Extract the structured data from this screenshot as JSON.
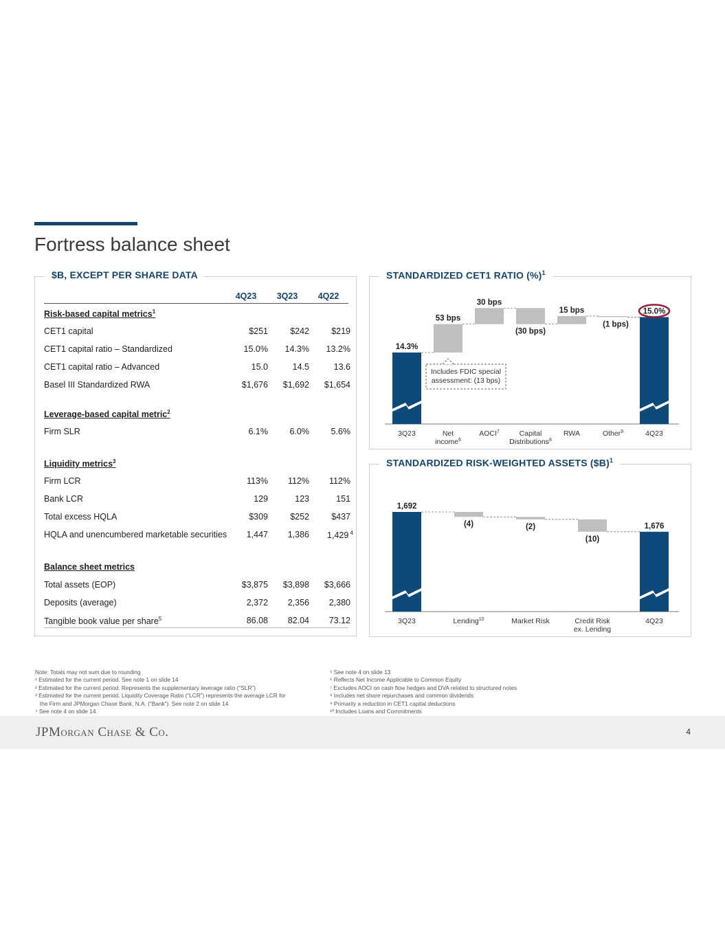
{
  "page": {
    "title": "Fortress balance sheet",
    "page_number": "4",
    "logo_text": "JPMorgan Chase & Co."
  },
  "colors": {
    "accent": "#14456e",
    "bar": "#0d4a7a",
    "delta": "#bfbfbf",
    "highlight": "#9b1b3b"
  },
  "table_panel": {
    "title": "$B, EXCEPT PER SHARE DATA",
    "columns": [
      "4Q23",
      "3Q23",
      "4Q22"
    ],
    "sections": [
      {
        "heading": "Risk-based capital metrics",
        "note": "1",
        "rows": [
          {
            "label": "CET1 capital",
            "note": "",
            "values": [
              "$251",
              "$242",
              "$219"
            ]
          },
          {
            "label": "CET1 capital ratio – Standardized",
            "note": "",
            "values": [
              "15.0%",
              "14.3%",
              "13.2%"
            ]
          },
          {
            "label": "CET1 capital ratio – Advanced",
            "note": "",
            "values": [
              "15.0",
              "14.5",
              "13.6"
            ]
          },
          {
            "label": "Basel III Standardized RWA",
            "note": "",
            "values": [
              "$1,676",
              "$1,692",
              "$1,654"
            ]
          }
        ]
      },
      {
        "heading": "Leverage-based capital metric",
        "note": "2",
        "rows": [
          {
            "label": "Firm SLR",
            "note": "",
            "values": [
              "6.1%",
              "6.0%",
              "5.6%"
            ]
          }
        ]
      },
      {
        "heading": "Liquidity metrics",
        "note": "3",
        "rows": [
          {
            "label": "Firm LCR",
            "note": "",
            "values": [
              "113%",
              "112%",
              "112%"
            ]
          },
          {
            "label": "Bank LCR",
            "note": "",
            "values": [
              "129",
              "123",
              "151"
            ]
          },
          {
            "label": "Total excess HQLA",
            "note": "",
            "values": [
              "$309",
              "$252",
              "$437"
            ]
          },
          {
            "label": "HQLA and unencumbered marketable securities",
            "note": "",
            "values": [
              "1,447",
              "1,386",
              "1,429"
            ],
            "value_note": "4"
          }
        ]
      },
      {
        "heading": "Balance sheet metrics",
        "note": "",
        "rows": [
          {
            "label": "Total assets (EOP)",
            "note": "",
            "values": [
              "$3,875",
              "$3,898",
              "$3,666"
            ]
          },
          {
            "label": "Deposits (average)",
            "note": "",
            "values": [
              "2,372",
              "2,356",
              "2,380"
            ]
          },
          {
            "label": "Tangible book value per share",
            "note": "5",
            "values": [
              "86.08",
              "82.04",
              "73.12"
            ]
          }
        ]
      }
    ]
  },
  "chart_data": [
    {
      "type": "waterfall",
      "title": "STANDARDIZED CET1 RATIO (%)",
      "title_note": "1",
      "categories": [
        "3Q23",
        "Net income",
        "AOCI",
        "Capital Distributions",
        "RWA",
        "Other",
        "4Q23"
      ],
      "category_notes": [
        "",
        "6",
        "7",
        "8",
        "",
        "9",
        ""
      ],
      "start": 14.3,
      "deltas_bps": [
        53,
        30,
        -30,
        15,
        -1
      ],
      "end": 15.0,
      "labels": [
        "14.3%",
        "53 bps",
        "30 bps",
        "(30 bps)",
        "15 bps",
        "(1 bps)",
        "15.0%"
      ],
      "annotation": "Includes FDIC special assessment: (13 bps)",
      "annotation_lines": [
        "Includes FDIC special",
        "assessment: (13 bps)"
      ],
      "highlight": "15.0%",
      "axis_break": true
    },
    {
      "type": "waterfall",
      "title": "STANDARDIZED RISK-WEIGHTED ASSETS ($B)",
      "title_note": "1",
      "categories": [
        "3Q23",
        "Lending",
        "Market Risk",
        "Credit Risk ex. Lending",
        "4Q23"
      ],
      "category_notes": [
        "",
        "10",
        "",
        "",
        ""
      ],
      "start": 1692,
      "deltas": [
        -4,
        -2,
        -10
      ],
      "end": 1676,
      "labels": [
        "1,692",
        "(4)",
        "(2)",
        "(10)",
        "1,676"
      ],
      "axis_break": true
    }
  ],
  "footnotes_left": [
    "Note: Totals may not sum due to rounding",
    "¹ Estimated for the current period. See note 1 on slide 14",
    "² Estimated for the current period. Represents the supplementary leverage ratio (“SLR”)",
    "³ Estimated for the current period. Liquidity Coverage Ratio (“LCR”) represents the average LCR for",
    "   the Firm and JPMorgan Chase Bank, N.A. (“Bank”). See note 2 on slide 14",
    "⁴ See note 4 on slide 14"
  ],
  "footnotes_right": [
    "⁵ See note 4 on slide 13",
    "⁶ Reflects Net Income Applicable to Common Equity",
    "⁷ Excludes AOCI on cash flow hedges and DVA related to structured notes",
    "⁸ Includes net share repurchases and common dividends",
    "⁹ Primarily a reduction in CET1 capital deductions",
    "¹⁰ Includes Loans and Commitments"
  ]
}
